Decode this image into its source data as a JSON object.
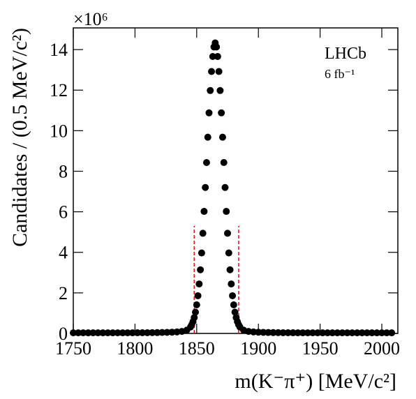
{
  "chart_data": {
    "type": "scatter",
    "x_label": "m(K⁻π⁺) [MeV/c²]",
    "y_label": "Candidates / (0.5 MeV/c²)",
    "y_multiplier": "×10⁶",
    "annotations": [
      "LHCb",
      "6 fb⁻¹"
    ],
    "color": "#000000",
    "x": [
      1750,
      1754,
      1758,
      1762,
      1766,
      1770,
      1774,
      1778,
      1782,
      1786,
      1790,
      1794,
      1798,
      1802,
      1806,
      1810,
      1814,
      1818,
      1822,
      1826,
      1830,
      1834,
      1838,
      1842,
      1845,
      1846,
      1847,
      1848,
      1849,
      1850,
      1851,
      1852,
      1853,
      1854,
      1855,
      1856,
      1857,
      1858,
      1859,
      1860,
      1861,
      1862,
      1863,
      1864,
      1865,
      1866,
      1867,
      1868,
      1869,
      1870,
      1871,
      1872,
      1873,
      1874,
      1875,
      1876,
      1877,
      1878,
      1879,
      1880,
      1881,
      1882,
      1883,
      1884,
      1885,
      1888,
      1892,
      1896,
      1900,
      1904,
      1908,
      1912,
      1916,
      1920,
      1924,
      1928,
      1932,
      1936,
      1940,
      1944,
      1948,
      1952,
      1956,
      1960,
      1964,
      1968,
      1972,
      1976,
      1980,
      1984,
      1988,
      1992,
      1996,
      2000,
      2004,
      2008
    ],
    "values": [
      0.03,
      0.03,
      0.03,
      0.03,
      0.03,
      0.03,
      0.03,
      0.03,
      0.031,
      0.031,
      0.031,
      0.032,
      0.032,
      0.033,
      0.034,
      0.036,
      0.039,
      0.042,
      0.047,
      0.053,
      0.062,
      0.075,
      0.098,
      0.163,
      0.32,
      0.43,
      0.58,
      0.78,
      1.05,
      1.41,
      1.86,
      2.44,
      3.14,
      3.97,
      4.94,
      6.02,
      7.2,
      8.43,
      9.68,
      10.88,
      11.98,
      12.92,
      13.66,
      14.13,
      14.33,
      14.13,
      13.66,
      12.92,
      11.98,
      10.88,
      9.68,
      8.43,
      7.2,
      6.02,
      4.94,
      3.97,
      3.14,
      2.44,
      1.86,
      1.41,
      1.05,
      0.78,
      0.58,
      0.43,
      0.32,
      0.163,
      0.098,
      0.075,
      0.062,
      0.053,
      0.047,
      0.042,
      0.039,
      0.036,
      0.034,
      0.033,
      0.032,
      0.032,
      0.031,
      0.031,
      0.031,
      0.03,
      0.03,
      0.03,
      0.03,
      0.03,
      0.03,
      0.03,
      0.03,
      0.03,
      0.03,
      0.03,
      0.03,
      0.03,
      0.03,
      0.03
    ],
    "xlim": [
      1750,
      2013
    ],
    "xticks": [
      1750,
      1800,
      1850,
      1900,
      1950,
      2000
    ],
    "ylim": [
      0,
      15.07
    ],
    "yticks": [
      0,
      2,
      4,
      6,
      8,
      10,
      12,
      14
    ],
    "grid": false,
    "cut_lines": {
      "x": [
        1848,
        1884
      ],
      "height": 5.3,
      "color": "#ff0000"
    }
  }
}
